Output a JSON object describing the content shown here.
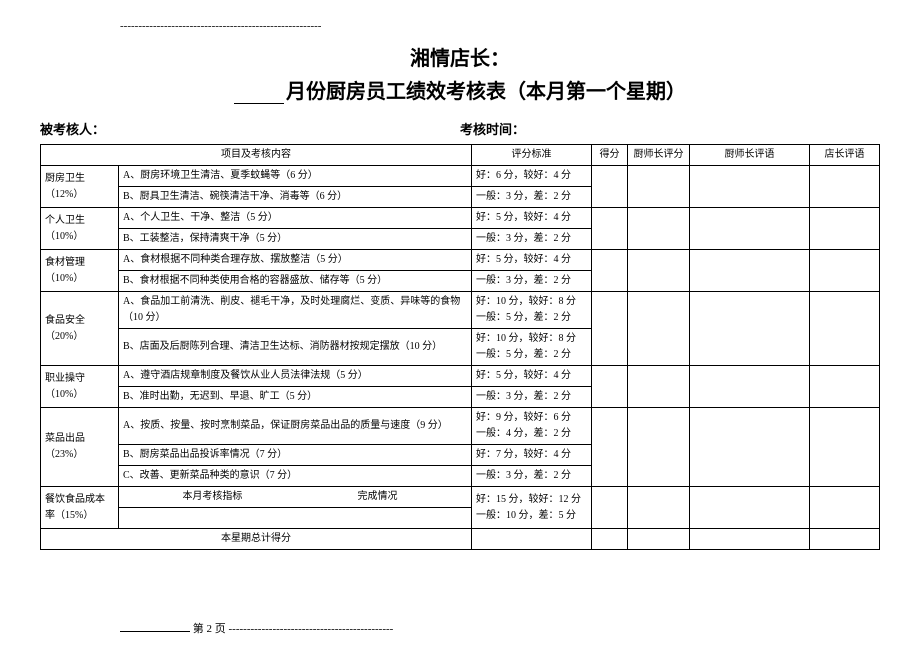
{
  "top_dash": "-------------------------------------------------------",
  "title": {
    "store": "湘情店长：",
    "main": "月份厨房员工绩效考核表（本月第一个星期）"
  },
  "meta": {
    "assessee_label": "被考核人：",
    "time_label": "考核时间："
  },
  "headers": {
    "item": "项目及考核内容",
    "standard": "评分标准",
    "score": "得分",
    "chef_score": "厨师长评分",
    "chef_comment": "厨师长评语",
    "mgr_comment": "店长评语"
  },
  "sections": [
    {
      "category": "厨房卫生（12%）",
      "rows": [
        {
          "content": "A、厨房环境卫生清洁、夏季蚊蝇等（6 分）",
          "std": "好：6 分，较好：4 分"
        },
        {
          "content": "B、厨具卫生清洁、碗筷清洁干净、消毒等（6 分）",
          "std": "一般：3 分，差：2 分"
        }
      ]
    },
    {
      "category": "个人卫生（10%）",
      "rows": [
        {
          "content": "A、个人卫生、干净、整洁（5 分）",
          "std": "好：5 分，较好：4 分"
        },
        {
          "content": "B、工装整洁，保持清爽干净（5 分）",
          "std": "一般：3 分，差：2 分"
        }
      ]
    },
    {
      "category": "食材管理（10%）",
      "rows": [
        {
          "content": "A、食材根据不同种类合理存放、摆放整洁（5 分）",
          "std": "好：5 分，较好：4 分"
        },
        {
          "content": "B、食材根据不同种类使用合格的容器盛放、储存等（5 分）",
          "std": "一般：3 分，差：2 分"
        }
      ]
    },
    {
      "category": "食品安全（20%）",
      "rows": [
        {
          "content": "A、食品加工前清洗、削皮、褪毛干净，及时处理腐烂、变质、异味等的食物（10 分）",
          "std": "好：10 分，较好：8 分\n一般：5 分，差：2 分"
        },
        {
          "content": "B、店面及后厨陈列合理、清洁卫生达标、消防器材按规定摆放（10 分）",
          "std": "好：10 分，较好：8 分\n一般：5 分，差：2 分"
        }
      ]
    },
    {
      "category": "职业操守（10%）",
      "rows": [
        {
          "content": "A、遵守酒店规章制度及餐饮从业人员法律法规（5 分）",
          "std": "好：5 分，较好：4 分"
        },
        {
          "content": "B、准时出勤，无迟到、早退、旷工（5 分）",
          "std": "一般：3 分，差：2 分"
        }
      ]
    },
    {
      "category": "菜品出品（23%）",
      "rows": [
        {
          "content": "A、按质、按量、按时烹制菜品，保证厨房菜品出品的质量与速度（9 分）",
          "std": "好：9 分，较好：6 分\n一般：4 分，差：2 分"
        },
        {
          "content": "B、厨房菜品出品投诉率情况（7 分）",
          "std": "好：7 分，较好：4 分"
        },
        {
          "content": "C、改善、更新菜品种类的意识（7 分）",
          "std": "一般：3 分，差：2 分"
        }
      ]
    }
  ],
  "cost": {
    "category": "餐饮食品成本率（15%）",
    "indicator_label": "本月考核指标",
    "completion_label": "完成情况",
    "std": "好：15 分，较好：12 分\n一般：10 分，差：5 分"
  },
  "total_label": "本星期总计得分",
  "footer": {
    "page_label": "第 2 页",
    "dash": "---------------------------------------------"
  }
}
